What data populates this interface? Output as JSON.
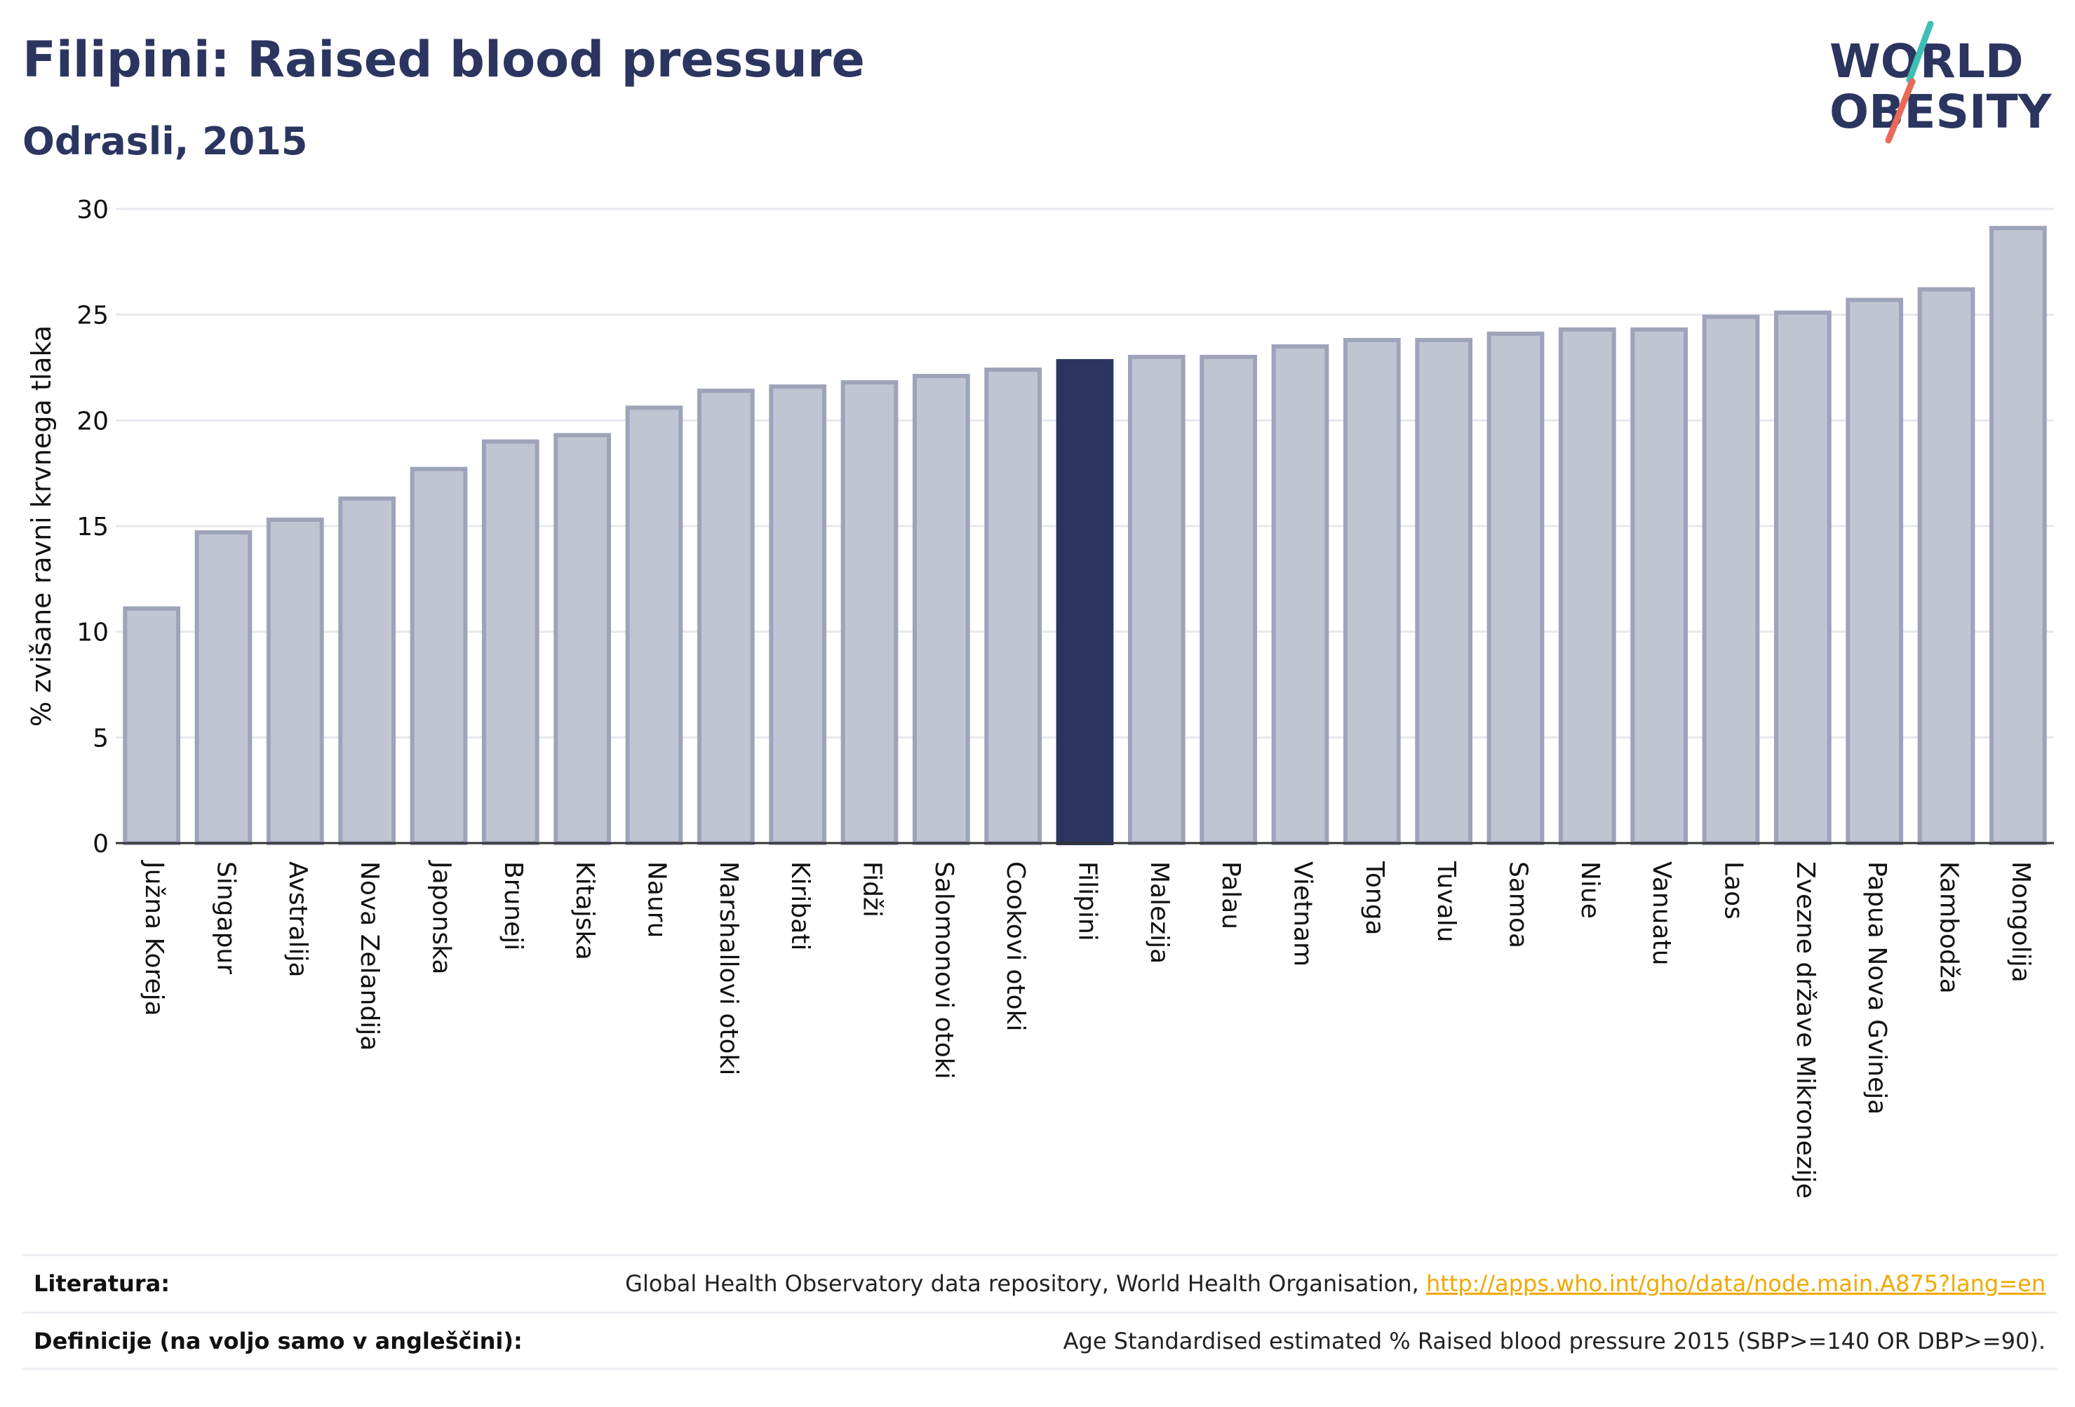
{
  "header": {
    "title": "Filipini: Raised blood pressure",
    "subtitle": "Odrasli, 2015"
  },
  "logo": {
    "line1": "WORLD",
    "line2": "OBESITY"
  },
  "chart_data": {
    "type": "bar",
    "ylabel": "% zvišane ravni krvnega tlaka",
    "ylim": [
      0,
      30
    ],
    "yticks": [
      0,
      5,
      10,
      15,
      20,
      25,
      30
    ],
    "grid": true,
    "highlight": "Filipini",
    "categories": [
      "Južna Koreja",
      "Singapur",
      "Avstralija",
      "Nova Zelandija",
      "Japonska",
      "Brunejі",
      "Kitajska",
      "Nauru",
      "Marshallovi otoki",
      "Kiribati",
      "Fidži",
      "Salomonovi otoki",
      "Cookovi otoki",
      "Filipini",
      "Malezija",
      "Palau",
      "Vietnam",
      "Tonga",
      "Tuvalu",
      "Samoa",
      "Niue",
      "Vanuatu",
      "Laos",
      "Zvezne države Mikronezije",
      "Papua Nova Gvineja",
      "Kambodža",
      "Mongolija"
    ],
    "values": [
      11.1,
      14.7,
      15.3,
      16.3,
      17.7,
      19.0,
      19.3,
      20.6,
      21.4,
      21.6,
      21.8,
      22.1,
      22.4,
      22.8,
      23.0,
      23.0,
      23.5,
      23.8,
      23.8,
      24.1,
      24.3,
      24.3,
      24.9,
      25.1,
      25.7,
      26.2,
      29.1
    ]
  },
  "colors": {
    "bar": "#c1c4d2",
    "bar_border": "#9ea3b9",
    "highlight": "#2b3560",
    "grid": "#e6e8ee",
    "axis": "#333333",
    "logo_teal": "#3fbfb4",
    "logo_coral": "#ea6a5a",
    "link": "#f0a800"
  },
  "footer": {
    "sources_label": "Literatura:",
    "sources_text": "Global Health Observatory data repository, World Health Organisation, ",
    "sources_link": "http://apps.who.int/gho/data/node.main.A875?lang=en",
    "definitions_label": "Definicije (na voljo samo v angleščini):",
    "definitions_text": "Age Standardised estimated % Raised blood pressure 2015 (SBP>=140 OR DBP>=90)."
  }
}
